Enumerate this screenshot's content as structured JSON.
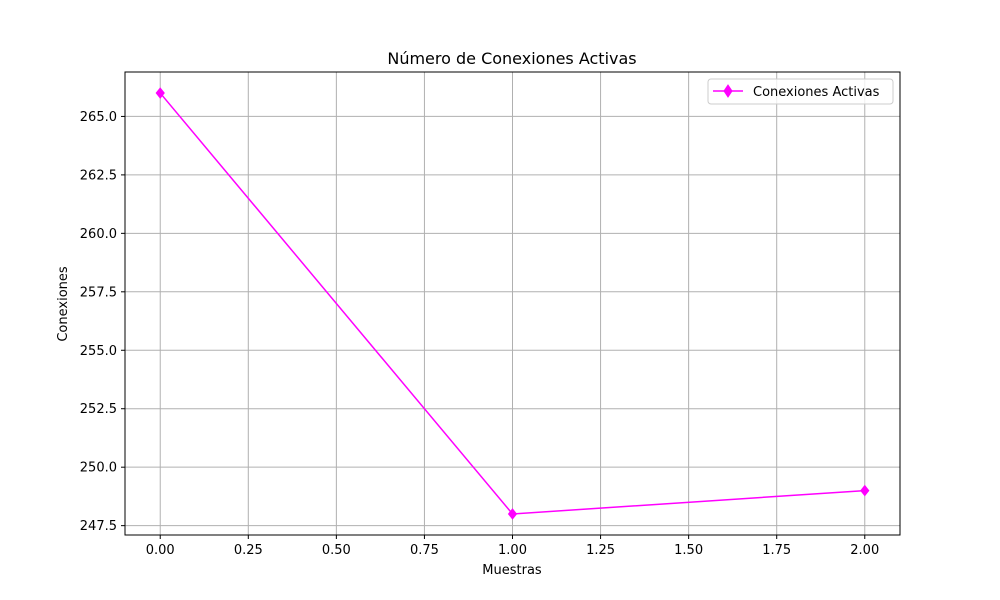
{
  "chart_data": {
    "type": "line",
    "title": "Número de Conexiones Activas",
    "xlabel": "Muestras",
    "ylabel": "Conexiones",
    "x": [
      0,
      1,
      2
    ],
    "series": [
      {
        "name": "Conexiones Activas",
        "values": [
          266,
          248,
          249
        ],
        "color": "#ff00ff",
        "marker": "diamond"
      }
    ],
    "xlim": [
      -0.1,
      2.1
    ],
    "ylim": [
      247.1,
      266.9
    ],
    "xticks": [
      0,
      0.25,
      0.5,
      0.75,
      1.0,
      1.25,
      1.5,
      1.75,
      2.0
    ],
    "xtick_labels": [
      "0.00",
      "0.25",
      "0.50",
      "0.75",
      "1.00",
      "1.25",
      "1.50",
      "1.75",
      "2.00"
    ],
    "yticks": [
      247.5,
      250.0,
      252.5,
      255.0,
      257.5,
      260.0,
      262.5,
      265.0
    ],
    "ytick_labels": [
      "247.5",
      "250.0",
      "252.5",
      "255.0",
      "257.5",
      "260.0",
      "262.5",
      "265.0"
    ],
    "grid": true,
    "legend_position": "top-right"
  }
}
